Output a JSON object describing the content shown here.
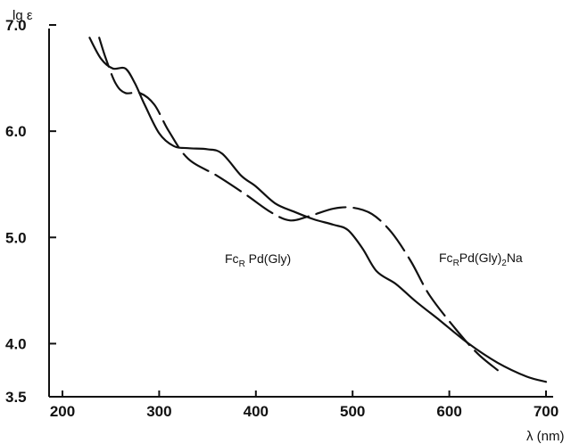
{
  "chart_data": {
    "type": "line",
    "title": "",
    "xlabel": "λ (nm)",
    "ylabel": "lg ε",
    "xlim": [
      200,
      700
    ],
    "ylim": [
      3.5,
      7.0
    ],
    "x_ticks": [
      "200",
      "300",
      "400",
      "500",
      "600",
      "700"
    ],
    "y_ticks": [
      "3.5",
      "4.0",
      "5.0",
      "6.0",
      "7.0"
    ],
    "grid": false,
    "series": [
      {
        "name": "FcR Pd(Gly)",
        "label_main": "Fc",
        "label_sub": "R",
        "label_rest": " Pd(Gly)",
        "style": "solid",
        "color": "#111111",
        "points": [
          [
            228,
            6.88
          ],
          [
            240,
            6.68
          ],
          [
            252,
            6.59
          ],
          [
            265,
            6.59
          ],
          [
            275,
            6.45
          ],
          [
            285,
            6.25
          ],
          [
            300,
            5.98
          ],
          [
            315,
            5.86
          ],
          [
            330,
            5.84
          ],
          [
            350,
            5.83
          ],
          [
            365,
            5.79
          ],
          [
            385,
            5.58
          ],
          [
            400,
            5.48
          ],
          [
            420,
            5.32
          ],
          [
            440,
            5.24
          ],
          [
            460,
            5.17
          ],
          [
            480,
            5.12
          ],
          [
            495,
            5.07
          ],
          [
            510,
            4.9
          ],
          [
            525,
            4.68
          ],
          [
            545,
            4.56
          ],
          [
            565,
            4.4
          ],
          [
            590,
            4.22
          ],
          [
            620,
            4.0
          ],
          [
            650,
            3.82
          ],
          [
            680,
            3.69
          ],
          [
            700,
            3.64
          ]
        ]
      },
      {
        "name": "FcRPd(Gly)2Na",
        "label_main": "Fc",
        "label_sub": "R",
        "label_mid": "Pd(Gly)",
        "label_sub2": "2",
        "label_rest": "Na",
        "style": "dashed",
        "color": "#111111",
        "points": [
          [
            238,
            6.88
          ],
          [
            245,
            6.68
          ],
          [
            255,
            6.45
          ],
          [
            265,
            6.36
          ],
          [
            280,
            6.36
          ],
          [
            295,
            6.25
          ],
          [
            310,
            6.0
          ],
          [
            330,
            5.74
          ],
          [
            360,
            5.58
          ],
          [
            390,
            5.4
          ],
          [
            415,
            5.24
          ],
          [
            435,
            5.16
          ],
          [
            455,
            5.2
          ],
          [
            480,
            5.27
          ],
          [
            500,
            5.28
          ],
          [
            520,
            5.22
          ],
          [
            540,
            5.05
          ],
          [
            560,
            4.78
          ],
          [
            580,
            4.45
          ],
          [
            610,
            4.1
          ],
          [
            630,
            3.9
          ],
          [
            650,
            3.75
          ]
        ]
      }
    ]
  }
}
